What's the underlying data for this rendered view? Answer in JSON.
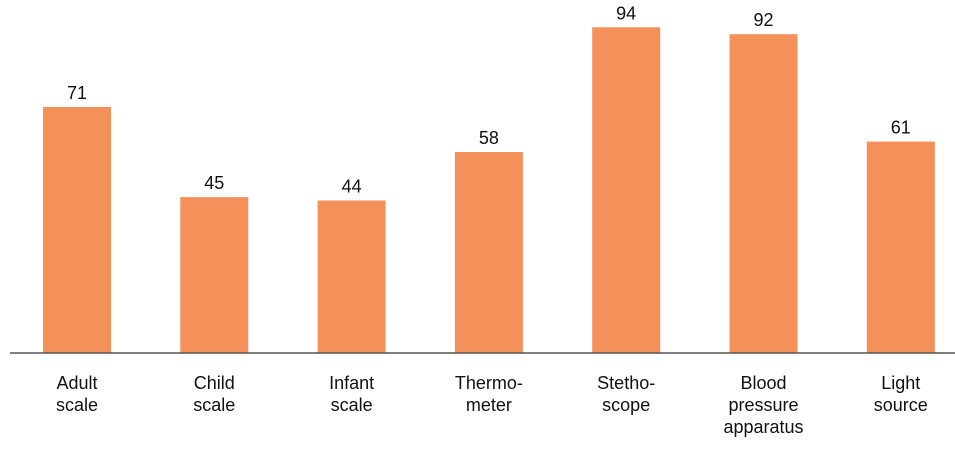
{
  "chart_data": {
    "type": "bar",
    "title": "",
    "xlabel": "",
    "ylabel": "",
    "ylim": [
      0,
      100
    ],
    "grid": false,
    "legend": "none",
    "bar_color": "#F4905A",
    "axis_color": "#555555",
    "categories": [
      [
        "Adult",
        "scale"
      ],
      [
        "Child",
        "scale"
      ],
      [
        "Infant",
        "scale"
      ],
      [
        "Thermo-",
        "meter"
      ],
      [
        "Stetho-",
        "scope"
      ],
      [
        "Blood",
        "pressure",
        "apparatus"
      ],
      [
        "Light",
        "source"
      ]
    ],
    "values": [
      71,
      45,
      44,
      58,
      94,
      92,
      61
    ]
  }
}
